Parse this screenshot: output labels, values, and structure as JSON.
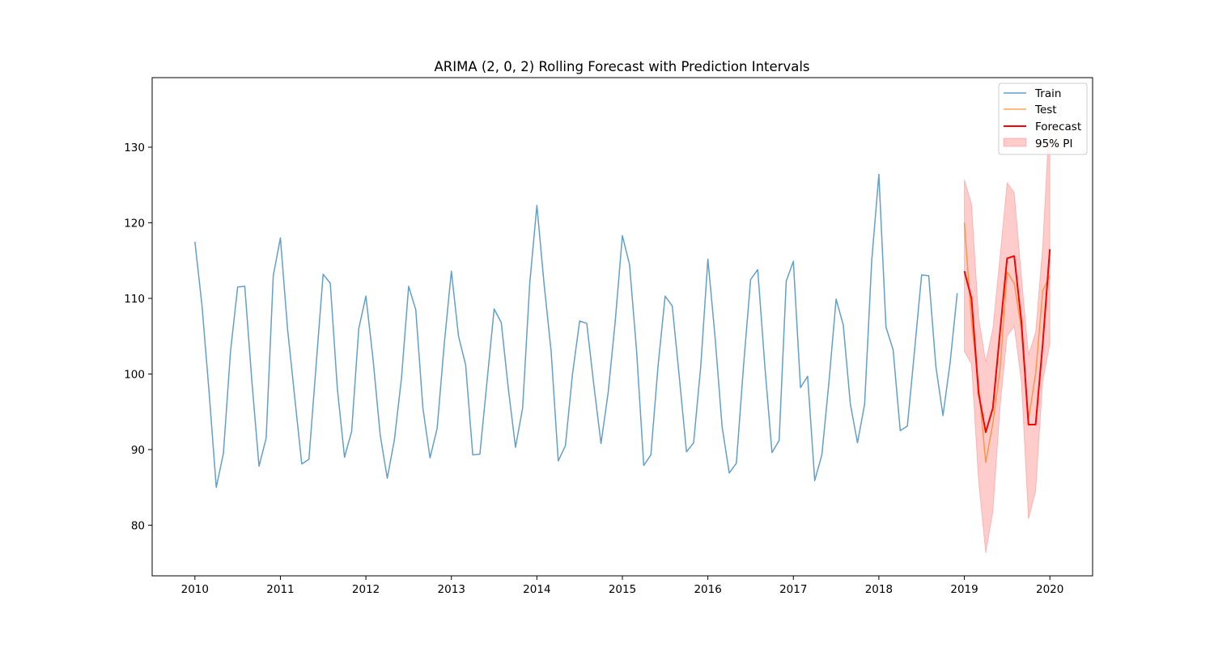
{
  "chart_data": {
    "type": "line",
    "title": "ARIMA (2, 0, 2) Rolling Forecast with Prediction Intervals",
    "xlabel": "",
    "ylabel": "",
    "xlim": [
      "2009-07",
      "2020-07"
    ],
    "ylim": [
      73.3,
      139.2
    ],
    "x_ticks": [
      "2010",
      "2011",
      "2012",
      "2013",
      "2014",
      "2015",
      "2016",
      "2017",
      "2018",
      "2019",
      "2020"
    ],
    "y_ticks": [
      "80",
      "90",
      "100",
      "110",
      "120",
      "130"
    ],
    "grid": false,
    "legend_position": "upper right",
    "series": [
      {
        "name": "Train",
        "color": "#1f77b4",
        "opacity": 0.7,
        "x": [
          "2010-01",
          "2010-02",
          "2010-03",
          "2010-04",
          "2010-05",
          "2010-06",
          "2010-07",
          "2010-08",
          "2010-09",
          "2010-10",
          "2010-11",
          "2010-12",
          "2011-01",
          "2011-02",
          "2011-03",
          "2011-04",
          "2011-05",
          "2011-06",
          "2011-07",
          "2011-08",
          "2011-09",
          "2011-10",
          "2011-11",
          "2011-12",
          "2012-01",
          "2012-02",
          "2012-03",
          "2012-04",
          "2012-05",
          "2012-06",
          "2012-07",
          "2012-08",
          "2012-09",
          "2012-10",
          "2012-11",
          "2012-12",
          "2013-01",
          "2013-02",
          "2013-03",
          "2013-04",
          "2013-05",
          "2013-06",
          "2013-07",
          "2013-08",
          "2013-09",
          "2013-10",
          "2013-11",
          "2013-12",
          "2014-01",
          "2014-02",
          "2014-03",
          "2014-04",
          "2014-05",
          "2014-06",
          "2014-07",
          "2014-08",
          "2014-09",
          "2014-10",
          "2014-11",
          "2014-12",
          "2015-01",
          "2015-02",
          "2015-03",
          "2015-04",
          "2015-05",
          "2015-06",
          "2015-07",
          "2015-08",
          "2015-09",
          "2015-10",
          "2015-11",
          "2015-12",
          "2016-01",
          "2016-02",
          "2016-03",
          "2016-04",
          "2016-05",
          "2016-06",
          "2016-07",
          "2016-08",
          "2016-09",
          "2016-10",
          "2016-11",
          "2016-12",
          "2017-01",
          "2017-02",
          "2017-03",
          "2017-04",
          "2017-05",
          "2017-06",
          "2017-07",
          "2017-08",
          "2017-09",
          "2017-10",
          "2017-11",
          "2017-12",
          "2018-01",
          "2018-02",
          "2018-03",
          "2018-04",
          "2018-05",
          "2018-06",
          "2018-07",
          "2018-08",
          "2018-09",
          "2018-10",
          "2018-11",
          "2018-12"
        ],
        "values": [
          117.5,
          109.0,
          97.5,
          85.0,
          89.5,
          103.0,
          111.5,
          111.6,
          99.0,
          87.8,
          91.5,
          113.0,
          118.0,
          106.0,
          97.0,
          88.1,
          88.7,
          101.0,
          113.2,
          112.0,
          98.0,
          89.0,
          92.4,
          106.0,
          110.3,
          102.0,
          92.0,
          86.2,
          91.3,
          99.5,
          111.6,
          108.5,
          95.5,
          88.9,
          92.8,
          104.0,
          113.6,
          105.0,
          101.2,
          89.3,
          89.4,
          99.0,
          108.6,
          106.8,
          98.0,
          90.3,
          95.5,
          112.0,
          122.3,
          112.0,
          103.0,
          88.5,
          90.5,
          100.0,
          107.0,
          106.7,
          98.5,
          90.8,
          97.5,
          107.0,
          118.3,
          114.5,
          103.0,
          87.9,
          89.3,
          101.0,
          110.3,
          109.0,
          99.5,
          89.7,
          90.9,
          101.0,
          115.2,
          105.0,
          93.0,
          86.9,
          88.2,
          101.0,
          112.5,
          113.8,
          101.0,
          89.6,
          91.2,
          112.3,
          114.9,
          98.2,
          99.7,
          85.9,
          89.3,
          99.0,
          109.9,
          106.5,
          96.0,
          90.9,
          96.0,
          115.0,
          126.4,
          106.2,
          103.2,
          92.5,
          93.1,
          103.0,
          113.1,
          113.0,
          101.0,
          94.5,
          101.5,
          110.7
        ]
      },
      {
        "name": "Test",
        "color": "#ff7f0e",
        "opacity": 0.7,
        "x": [
          "2019-01",
          "2019-02",
          "2019-03",
          "2019-04",
          "2019-05",
          "2019-06",
          "2019-07",
          "2019-08",
          "2019-09",
          "2019-10",
          "2019-11",
          "2019-12",
          "2020-01"
        ],
        "values": [
          120.0,
          107.0,
          98.5,
          88.3,
          93.5,
          100.5,
          113.5,
          112.0,
          106.0,
          94.0,
          100.0,
          111.0,
          113.0
        ]
      },
      {
        "name": "Forecast",
        "color": "#ff0000",
        "opacity": 1,
        "x": [
          "2019-01",
          "2019-02",
          "2019-03",
          "2019-04",
          "2019-05",
          "2019-06",
          "2019-07",
          "2019-08",
          "2019-09",
          "2019-10",
          "2019-11",
          "2019-12",
          "2020-01"
        ],
        "values": [
          113.6,
          110.0,
          97.4,
          92.3,
          95.5,
          105.5,
          115.3,
          115.6,
          107.0,
          93.3,
          93.3,
          104.0,
          116.5
        ]
      }
    ],
    "interval": {
      "name": "95% PI",
      "color": "#ff0000",
      "opacity": 0.2,
      "x": [
        "2019-01",
        "2019-02",
        "2019-03",
        "2019-04",
        "2019-05",
        "2019-06",
        "2019-07",
        "2019-08",
        "2019-09",
        "2019-10",
        "2019-11",
        "2019-12",
        "2020-01"
      ],
      "upper": [
        125.7,
        122.5,
        107.5,
        101.6,
        106.0,
        115.5,
        125.3,
        124.0,
        113.0,
        102.5,
        105.5,
        117.0,
        135.0
      ],
      "lower": [
        103.0,
        101.3,
        85.8,
        76.3,
        81.8,
        95.5,
        105.0,
        106.3,
        99.0,
        80.8,
        84.5,
        99.0,
        104.0
      ]
    }
  }
}
